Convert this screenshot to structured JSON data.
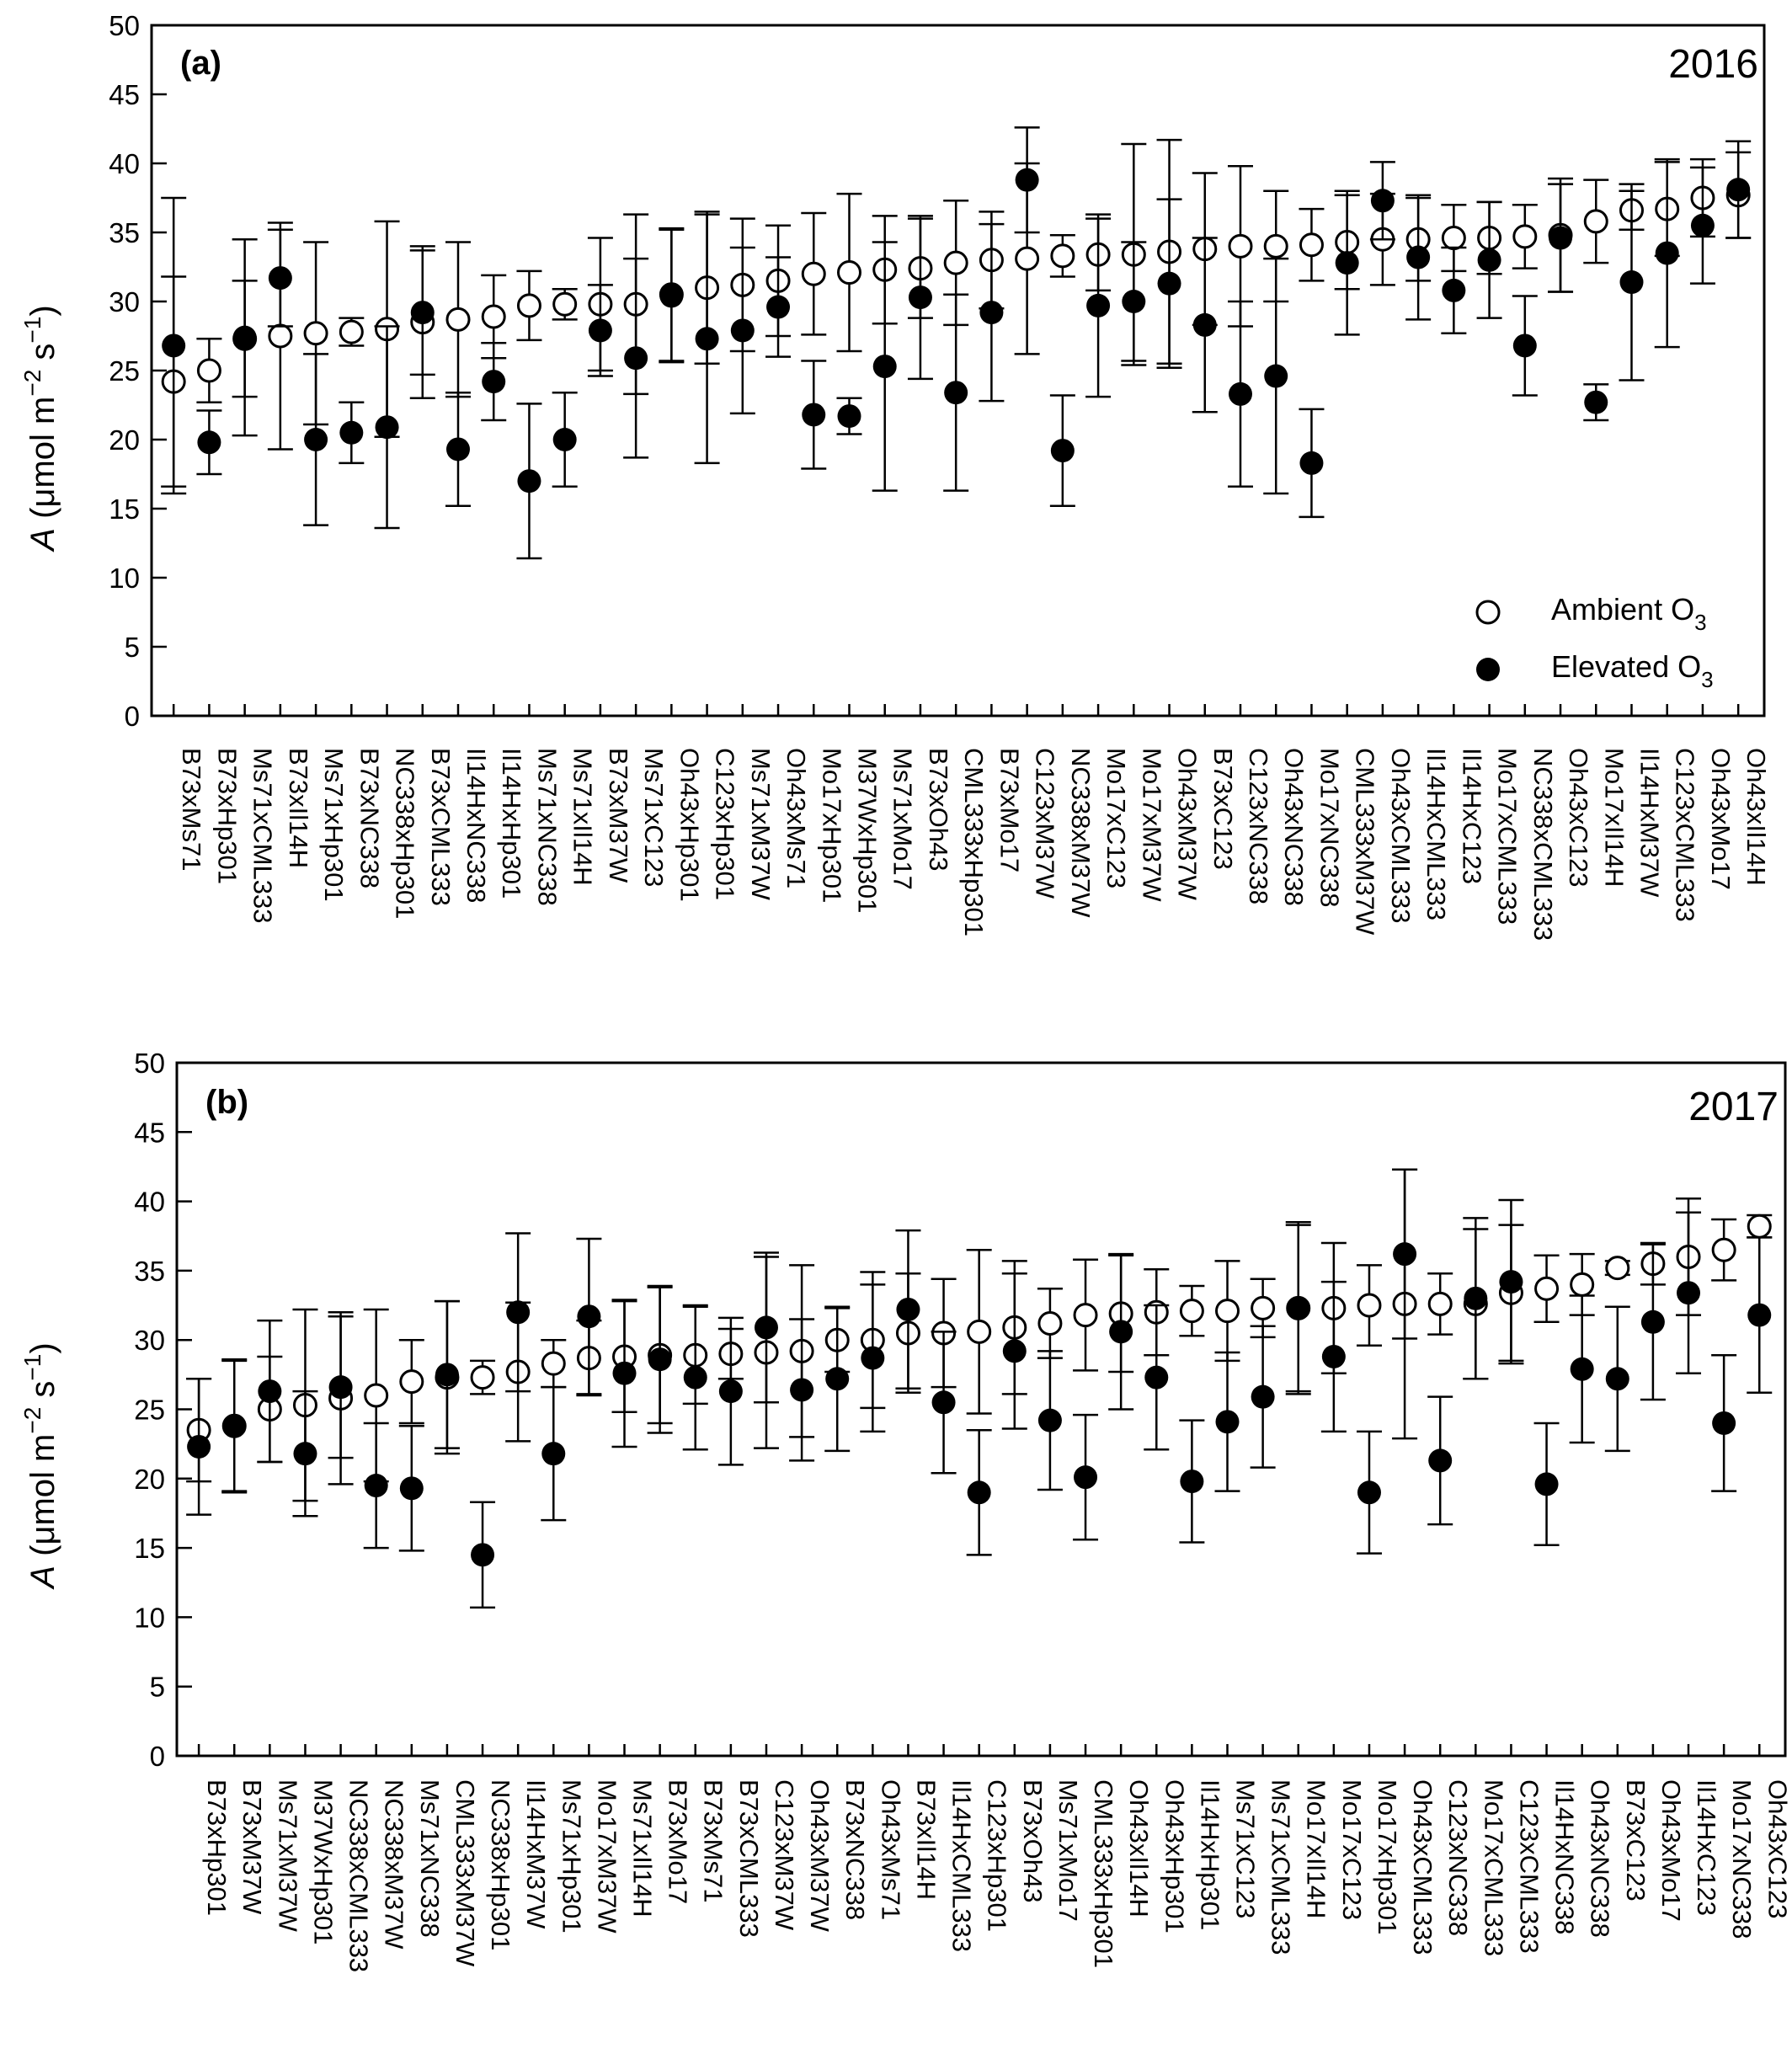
{
  "chart_data": [
    {
      "type": "scatter",
      "panel": "(a)",
      "year": "2016",
      "ylabel": {
        "symbol": "A",
        "unit_open": " (μmol m",
        "unit_exp1": "−2",
        "unit_mid": " s",
        "unit_exp2": "−1",
        "unit_close": ")"
      },
      "ylim": [
        0,
        50
      ],
      "yticks": [
        "0",
        "5",
        "10",
        "15",
        "20",
        "25",
        "30",
        "35",
        "40",
        "45",
        "50"
      ],
      "legend": {
        "position": "bottom-right",
        "entries": [
          {
            "text": "Ambient O",
            "sub": "3",
            "marker": "open"
          },
          {
            "text": "Elevated O",
            "sub": "3",
            "marker": "filled"
          }
        ]
      },
      "categories": [
        "B73xMs71",
        "B73xHp301",
        "Ms71xCML333",
        "B73xIl14H",
        "Ms71xHp301",
        "B73xNC338",
        "NC338xHp301",
        "B73xCML333",
        "Il14HxNC338",
        "Il14HxHp301",
        "Ms71xNC338",
        "Ms71xIl14H",
        "B73xM37W",
        "Ms71xC123",
        "Oh43xHp301",
        "C123xHp301",
        "Ms71xM37W",
        "Oh43xMs71",
        "Mo17xHp301",
        "M37WxHp301",
        "Ms71xMo17",
        "B73xOh43",
        "CML333xHp301",
        "B73xMo17",
        "C123xM37W",
        "NC338xM37W",
        "Mo17xC123",
        "Mo17xM37W",
        "Oh43xM37W",
        "B73xC123",
        "C123xNC338",
        "Oh43xNC338",
        "Mo17xNC338",
        "CML333xM37W",
        "Oh43xCML333",
        "Il14HxCML333",
        "Il14HxC123",
        "Mo17xCML333",
        "NC338xCML333",
        "Oh43xC123",
        "Mo17xIl14H",
        "Il14HxM37W",
        "C123xCML333",
        "Oh43xMo17",
        "Oh43xIl14H"
      ],
      "series": [
        {
          "name": "Ambient O3",
          "marker": "open",
          "values": [
            24.2,
            25.0,
            27.3,
            27.5,
            27.7,
            27.8,
            28.0,
            28.5,
            28.7,
            28.9,
            29.7,
            29.8,
            29.8,
            29.8,
            30.5,
            31.0,
            31.2,
            31.5,
            32.0,
            32.1,
            32.3,
            32.4,
            32.8,
            33.0,
            33.1,
            33.3,
            33.4,
            33.4,
            33.6,
            33.8,
            34.0,
            34.0,
            34.1,
            34.3,
            34.5,
            34.5,
            34.6,
            34.6,
            34.7,
            34.8,
            35.8,
            36.6,
            36.7,
            37.5,
            37.7
          ],
          "errors": [
            7.6,
            2.3,
            4.2,
            8.2,
            6.6,
            1.0,
            7.8,
            5.5,
            5.6,
            3.0,
            2.5,
            1.1,
            4.8,
            6.5,
            4.8,
            5.5,
            4.8,
            4.0,
            4.4,
            5.7,
            3.9,
            3.6,
            4.5,
            3.5,
            6.9,
            1.5,
            2.6,
            8.0,
            8.1,
            5.5,
            5.8,
            4.0,
            2.6,
            3.4,
            3.3,
            3.0,
            2.4,
            2.6,
            2.3,
            4.1,
            3.0,
            1.4,
            3.4,
            2.8,
            3.1
          ]
        },
        {
          "name": "Elevated O3",
          "marker": "filled",
          "values": [
            26.8,
            19.8,
            27.4,
            31.7,
            20.0,
            20.5,
            20.9,
            29.2,
            19.3,
            24.2,
            17.0,
            20.0,
            27.9,
            25.9,
            30.4,
            27.3,
            27.9,
            29.6,
            21.8,
            21.7,
            25.3,
            30.3,
            23.4,
            29.2,
            38.8,
            19.2,
            29.7,
            30.0,
            31.3,
            28.3,
            23.3,
            24.6,
            18.3,
            32.8,
            37.3,
            33.2,
            30.8,
            33.0,
            26.8,
            34.6,
            22.7,
            31.4,
            33.5,
            35.5,
            38.1
          ],
          "errors": [
            10.7,
            2.3,
            7.1,
            3.5,
            6.2,
            2.2,
            7.3,
            4.5,
            4.1,
            2.8,
            5.6,
            3.4,
            3.3,
            7.2,
            4.8,
            9.0,
            6.0,
            3.6,
            3.9,
            1.3,
            9.0,
            5.9,
            7.1,
            6.4,
            3.8,
            4.0,
            6.6,
            4.3,
            6.1,
            6.3,
            6.7,
            8.5,
            3.9,
            5.2,
            2.8,
            4.5,
            3.1,
            4.2,
            3.6,
            3.9,
            1.3,
            7.1,
            6.8,
            4.2,
            3.5
          ]
        }
      ]
    },
    {
      "type": "scatter",
      "panel": "(b)",
      "year": "2017",
      "ylabel": {
        "symbol": "A",
        "unit_open": " (μmol m",
        "unit_exp1": "−2",
        "unit_mid": " s",
        "unit_exp2": "−1",
        "unit_close": ")"
      },
      "ylim": [
        0,
        50
      ],
      "yticks": [
        "0",
        "5",
        "10",
        "15",
        "20",
        "25",
        "30",
        "35",
        "40",
        "45",
        "50"
      ],
      "categories": [
        "B73xHp301",
        "B73xM37W",
        "Ms71xM37W",
        "M37WxHp301",
        "NC338xCML333",
        "NC338xM37W",
        "Ms71xNC338",
        "CML333xM37W",
        "NC338xHp301",
        "Il14HxM37W",
        "Ms71xHp301",
        "Mo17xM37W",
        "Ms71xIl14H",
        "B73xMo17",
        "B73xMs71",
        "B73xCML333",
        "C123xM37W",
        "Oh43xM37W",
        "B73xNC338",
        "Oh43xMs71",
        "B73xIl14H",
        "Il14HxCML333",
        "C123xHp301",
        "B73xOh43",
        "Ms71xMo17",
        "CML333xHp301",
        "Oh43xIl14H",
        "Oh43xHp301",
        "Il14HxHp301",
        "Ms71xC123",
        "Ms71xCML333",
        "Mo17xIl14H",
        "Mo17xC123",
        "Mo17xHp301",
        "Oh43xCML333",
        "C123xNC338",
        "Mo17xCML333",
        "C123xCML333",
        "Il14HxNC338",
        "Oh43xNC338",
        "B73xC123",
        "Oh43xMo17",
        "Il14HxC123",
        "Mo17xNC338",
        "Oh43xC123"
      ],
      "series": [
        {
          "name": "Ambient O3",
          "marker": "open",
          "values": [
            23.5,
            23.8,
            25.0,
            25.3,
            25.8,
            26.0,
            27.0,
            27.3,
            27.3,
            27.7,
            28.3,
            28.7,
            28.8,
            28.9,
            28.9,
            29.0,
            29.1,
            29.2,
            30.0,
            30.0,
            30.5,
            30.5,
            30.6,
            30.9,
            31.2,
            31.8,
            31.9,
            32.0,
            32.1,
            32.1,
            32.3,
            32.3,
            32.3,
            32.5,
            32.6,
            32.6,
            32.6,
            33.4,
            33.7,
            34.0,
            35.2,
            35.5,
            36.0,
            36.5,
            38.2
          ],
          "errors": [
            3.7,
            4.7,
            3.8,
            6.9,
            6.2,
            6.2,
            3.0,
            5.5,
            1.2,
            5.0,
            1.7,
            2.7,
            4.0,
            4.9,
            3.5,
            1.8,
            6.9,
            6.2,
            2.3,
            4.9,
            4.3,
            3.9,
            5.9,
            4.8,
            2.5,
            4.0,
            4.2,
            3.1,
            1.8,
            3.6,
            2.1,
            6.2,
            4.7,
            2.9,
            9.7,
            2.2,
            5.4,
            4.9,
            2.4,
            2.2,
            0.5,
            1.5,
            4.2,
            2.2,
            0.8
          ]
        },
        {
          "name": "Elevated O3",
          "marker": "filled",
          "values": [
            22.3,
            23.8,
            26.3,
            21.8,
            26.6,
            19.5,
            19.3,
            27.5,
            14.5,
            32.0,
            21.8,
            31.7,
            27.6,
            28.6,
            27.3,
            26.3,
            30.9,
            26.4,
            27.2,
            28.7,
            32.2,
            25.5,
            19.0,
            29.2,
            24.2,
            20.1,
            30.6,
            27.3,
            19.8,
            24.1,
            25.9,
            32.3,
            28.8,
            19.0,
            36.2,
            21.3,
            33.0,
            34.2,
            19.6,
            27.9,
            27.2,
            31.3,
            33.4,
            24.0,
            31.8
          ],
          "errors": [
            4.9,
            4.8,
            5.1,
            4.5,
            5.1,
            4.5,
            4.5,
            5.3,
            3.8,
            5.7,
            4.8,
            5.6,
            5.3,
            5.3,
            5.2,
            5.3,
            5.4,
            5.1,
            5.2,
            5.3,
            5.7,
            5.1,
            4.5,
            5.6,
            5.0,
            4.5,
            5.6,
            5.2,
            4.4,
            5.0,
            5.1,
            6.0,
            5.4,
            4.4,
            6.1,
            4.6,
            5.8,
            5.9,
            4.4,
            5.3,
            5.2,
            5.6,
            5.8,
            4.9,
            5.6
          ]
        }
      ]
    }
  ]
}
